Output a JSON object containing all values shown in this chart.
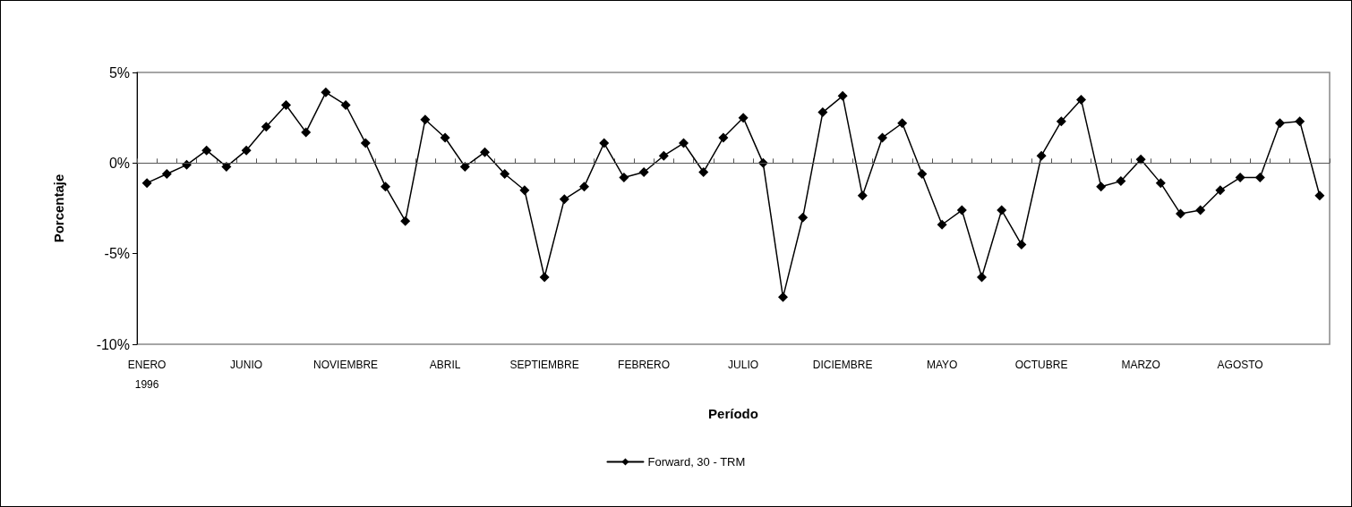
{
  "chart_data": {
    "type": "line",
    "xlabel": "Período",
    "ylabel": "Porcentaje",
    "categories": [
      "ENERO\n1996",
      null,
      null,
      null,
      null,
      "JUNIO",
      null,
      null,
      null,
      null,
      "NOVIEMBRE",
      null,
      null,
      null,
      null,
      "ABRIL",
      null,
      null,
      null,
      null,
      "SEPTIEMBRE",
      null,
      null,
      null,
      null,
      "FEBRERO",
      null,
      null,
      null,
      null,
      "JULIO",
      null,
      null,
      null,
      null,
      "DICIEMBRE",
      null,
      null,
      null,
      null,
      "MAYO",
      null,
      null,
      null,
      null,
      "OCTUBRE",
      null,
      null,
      null,
      null,
      "MARZO",
      null,
      null,
      null,
      null,
      "AGOSTO",
      null,
      null,
      null,
      null
    ],
    "series": [
      {
        "name": "Forward, 30 - TRM",
        "color": "#000000",
        "values": [
          -1.1,
          -0.6,
          -0.1,
          0.7,
          -0.2,
          0.7,
          2.0,
          3.2,
          1.7,
          3.9,
          3.2,
          1.1,
          -1.3,
          -3.2,
          2.4,
          1.4,
          -0.2,
          0.6,
          -0.6,
          -1.5,
          -6.3,
          -2.0,
          -1.3,
          1.1,
          -0.8,
          -0.5,
          0.4,
          1.1,
          -0.5,
          1.4,
          2.5,
          0.0,
          -7.4,
          -3.0,
          2.8,
          3.7,
          -1.8,
          1.4,
          2.2,
          -0.6,
          -3.4,
          -2.6,
          -6.3,
          -2.6,
          -4.5,
          0.4,
          2.3,
          3.5,
          -1.3,
          -1.0,
          0.2,
          -1.1,
          -2.8,
          -2.6,
          -1.5,
          -0.8,
          -0.8,
          2.2,
          2.3,
          -1.8
        ]
      }
    ],
    "ylim": [
      -10,
      5
    ],
    "yticks": [
      {
        "value": -10,
        "label": "-10%"
      },
      {
        "value": -5,
        "label": "-5%"
      },
      {
        "value": 0,
        "label": "0%"
      },
      {
        "value": 5,
        "label": "5%"
      }
    ],
    "ref_lines": [
      {
        "axis": "y",
        "value": 0,
        "color": "#555555"
      }
    ],
    "grid": false,
    "legend": "bottom",
    "marker": "diamond",
    "line_style": "solid"
  }
}
